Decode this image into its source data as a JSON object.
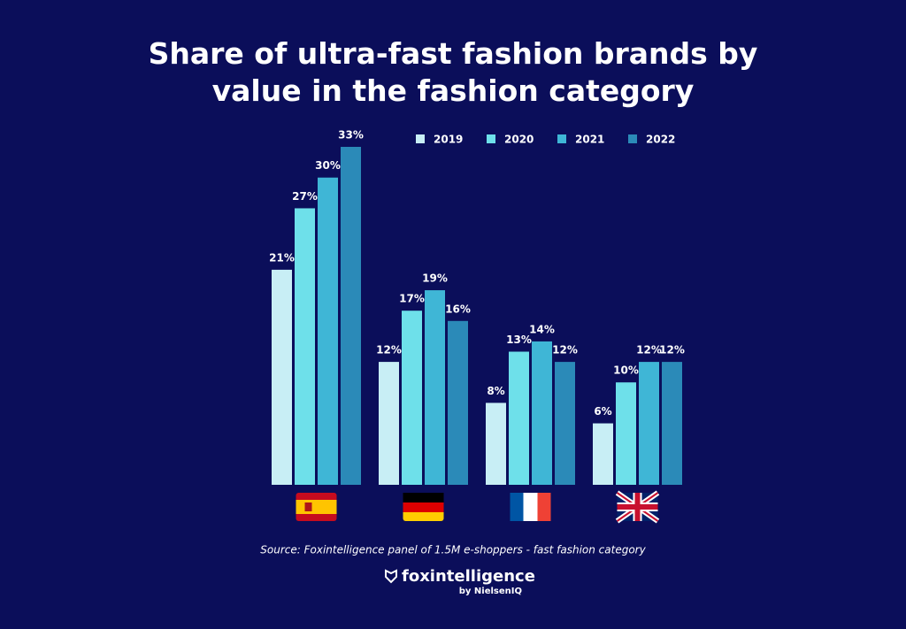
{
  "chart_data": {
    "type": "bar",
    "title": "Share of ultra-fast fashion brands by value in the fashion category",
    "categories": [
      null,
      null,
      null,
      null
    ],
    "series": [
      {
        "name": "2019",
        "color": "#c8eef5",
        "values": [
          21,
          12,
          8,
          6
        ],
        "value_labels": [
          "21%",
          "12%",
          "8%",
          "6%"
        ]
      },
      {
        "name": "2020",
        "color": "#6ee0ea",
        "values": [
          27,
          17,
          13,
          10
        ],
        "value_labels": [
          "27%",
          "17%",
          "13%",
          "10%"
        ]
      },
      {
        "name": "2021",
        "color": "#3fb6d6",
        "values": [
          30,
          19,
          14,
          12
        ],
        "value_labels": [
          "30%",
          "19%",
          "14%",
          "12%"
        ]
      },
      {
        "name": "2022",
        "color": "#2b8ab8",
        "values": [
          33,
          16,
          12,
          12
        ],
        "value_labels": [
          "33%",
          "16%",
          "12%",
          "12%"
        ]
      }
    ],
    "source": "Source: Foxintelligence panel of 1.5M e-shoppers - fast fashion category",
    "brand": "foxintelligence",
    "brand_sub": "by NielsenIQ"
  }
}
